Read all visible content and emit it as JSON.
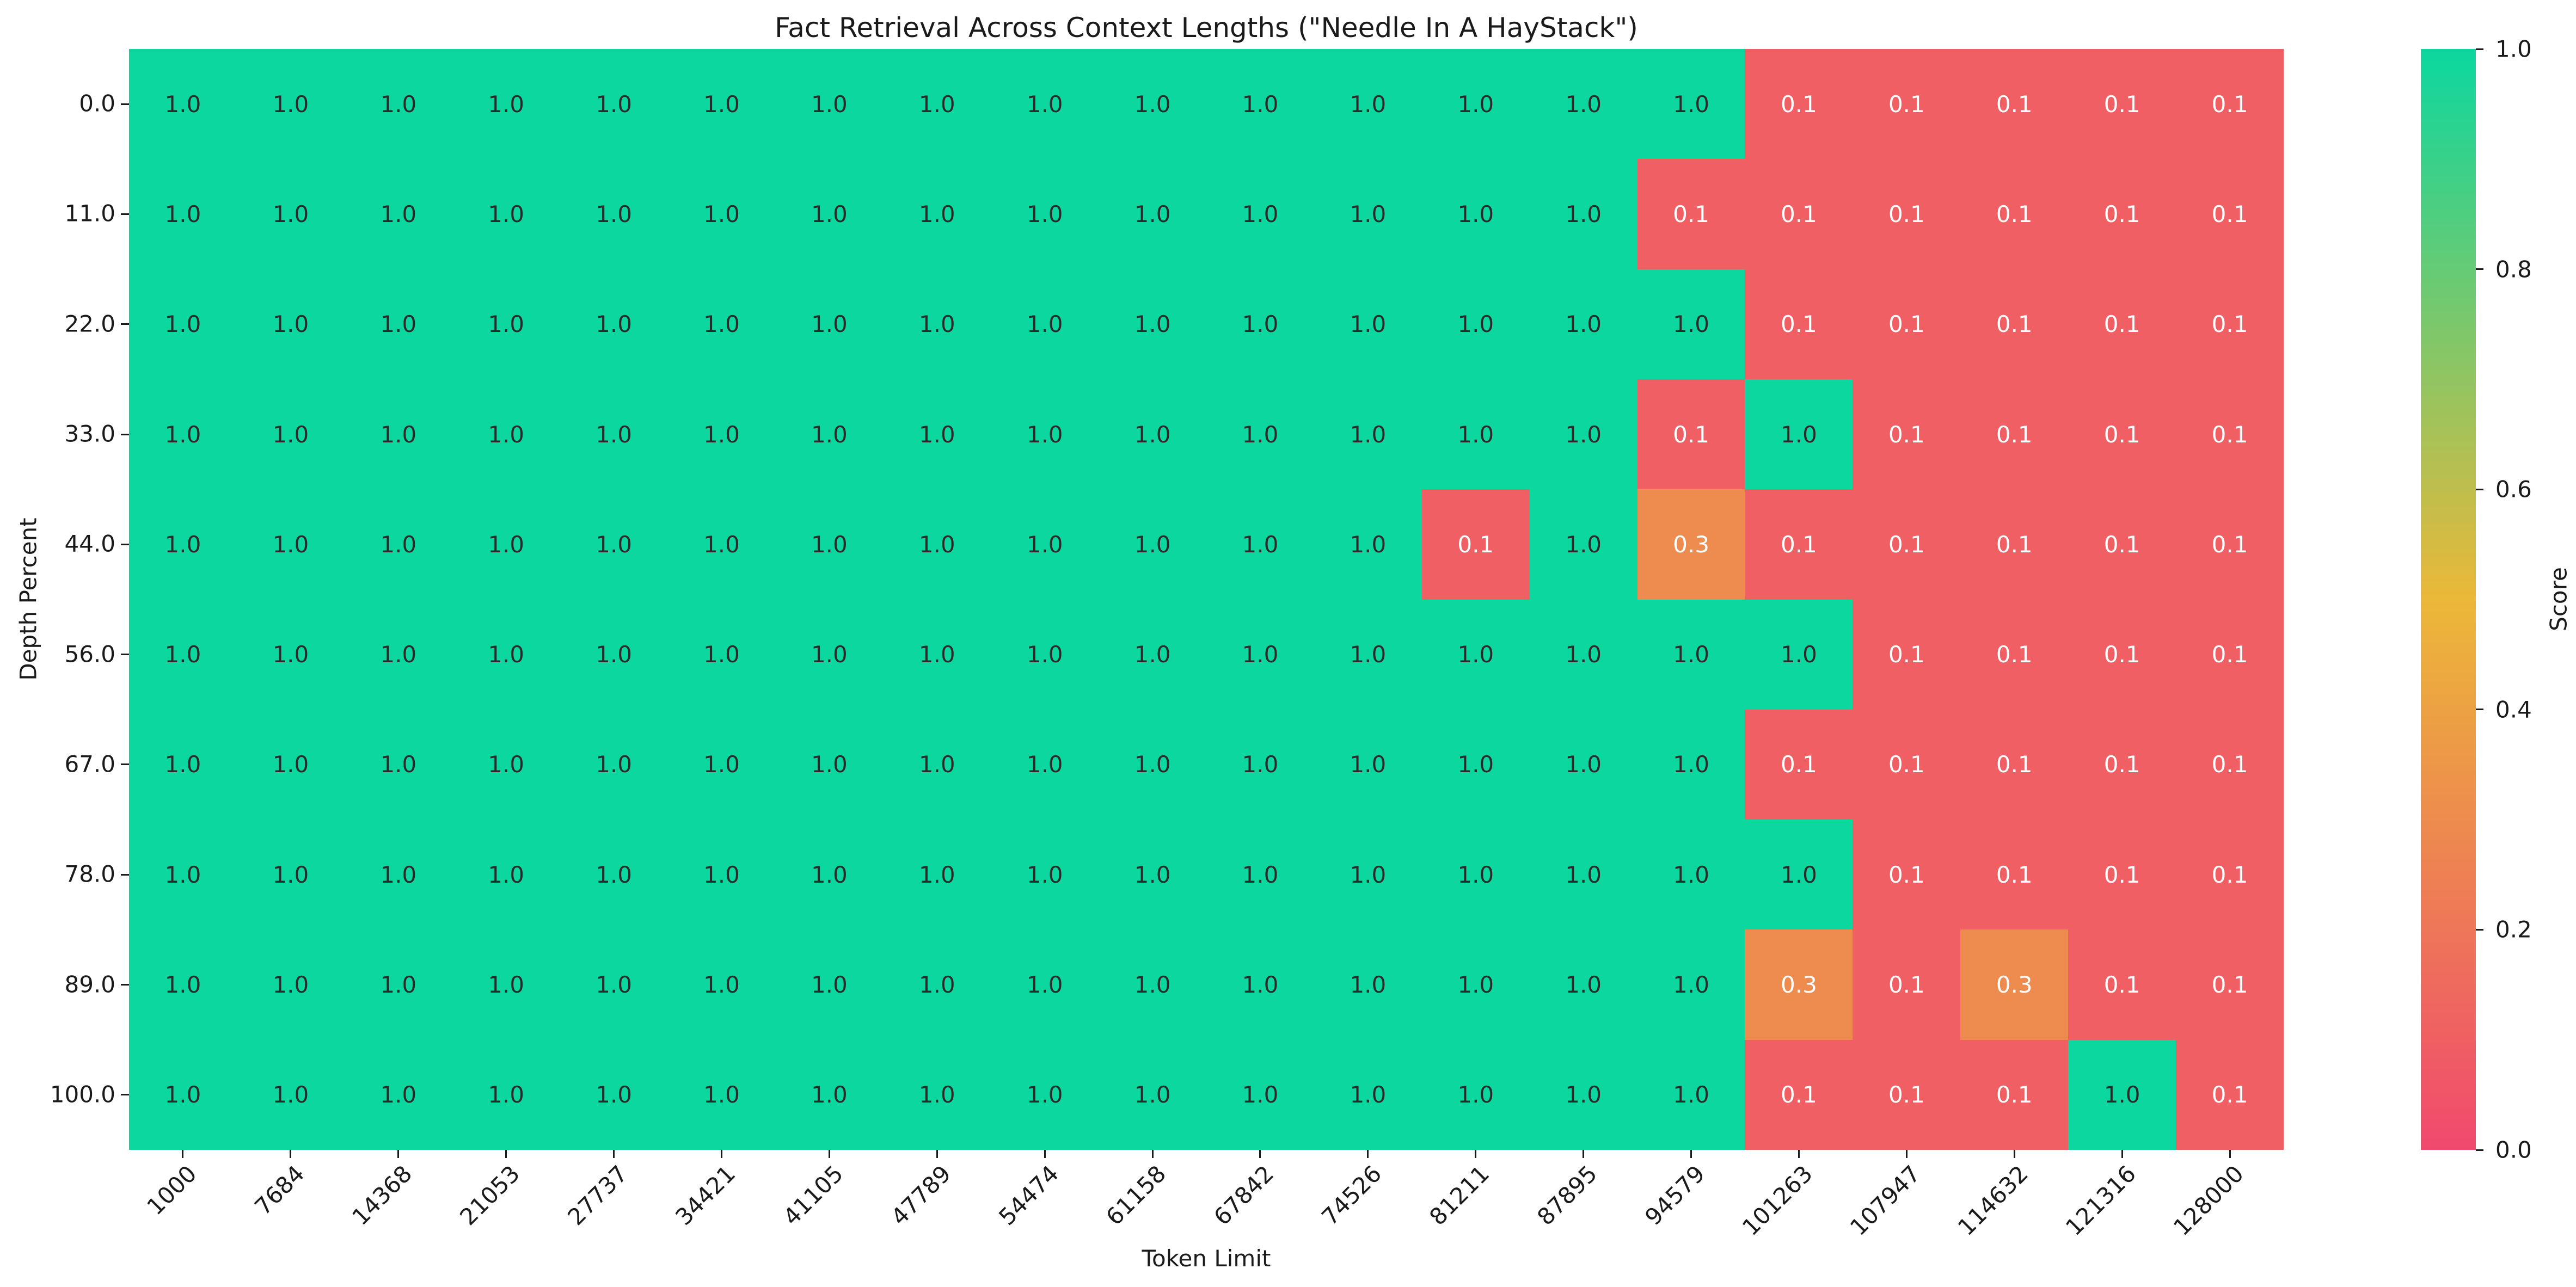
{
  "chart_data": {
    "type": "heatmap",
    "title": "Fact Retrieval Across Context Lengths (\"Needle In A HayStack\")",
    "xlabel": "Token Limit",
    "ylabel": "Depth Percent",
    "x_categories": [
      "1000",
      "7684",
      "14368",
      "21053",
      "27737",
      "34421",
      "41105",
      "47789",
      "54474",
      "61158",
      "67842",
      "74526",
      "81211",
      "87895",
      "94579",
      "101263",
      "107947",
      "114632",
      "121316",
      "128000"
    ],
    "y_categories": [
      "0.0",
      "11.0",
      "22.0",
      "33.0",
      "44.0",
      "56.0",
      "67.0",
      "78.0",
      "89.0",
      "100.0"
    ],
    "values": [
      [
        1.0,
        1.0,
        1.0,
        1.0,
        1.0,
        1.0,
        1.0,
        1.0,
        1.0,
        1.0,
        1.0,
        1.0,
        1.0,
        1.0,
        1.0,
        0.1,
        0.1,
        0.1,
        0.1,
        0.1
      ],
      [
        1.0,
        1.0,
        1.0,
        1.0,
        1.0,
        1.0,
        1.0,
        1.0,
        1.0,
        1.0,
        1.0,
        1.0,
        1.0,
        1.0,
        0.1,
        0.1,
        0.1,
        0.1,
        0.1,
        0.1
      ],
      [
        1.0,
        1.0,
        1.0,
        1.0,
        1.0,
        1.0,
        1.0,
        1.0,
        1.0,
        1.0,
        1.0,
        1.0,
        1.0,
        1.0,
        1.0,
        0.1,
        0.1,
        0.1,
        0.1,
        0.1
      ],
      [
        1.0,
        1.0,
        1.0,
        1.0,
        1.0,
        1.0,
        1.0,
        1.0,
        1.0,
        1.0,
        1.0,
        1.0,
        1.0,
        1.0,
        0.1,
        1.0,
        0.1,
        0.1,
        0.1,
        0.1
      ],
      [
        1.0,
        1.0,
        1.0,
        1.0,
        1.0,
        1.0,
        1.0,
        1.0,
        1.0,
        1.0,
        1.0,
        1.0,
        0.1,
        1.0,
        0.3,
        0.1,
        0.1,
        0.1,
        0.1,
        0.1
      ],
      [
        1.0,
        1.0,
        1.0,
        1.0,
        1.0,
        1.0,
        1.0,
        1.0,
        1.0,
        1.0,
        1.0,
        1.0,
        1.0,
        1.0,
        1.0,
        1.0,
        0.1,
        0.1,
        0.1,
        0.1
      ],
      [
        1.0,
        1.0,
        1.0,
        1.0,
        1.0,
        1.0,
        1.0,
        1.0,
        1.0,
        1.0,
        1.0,
        1.0,
        1.0,
        1.0,
        1.0,
        0.1,
        0.1,
        0.1,
        0.1,
        0.1
      ],
      [
        1.0,
        1.0,
        1.0,
        1.0,
        1.0,
        1.0,
        1.0,
        1.0,
        1.0,
        1.0,
        1.0,
        1.0,
        1.0,
        1.0,
        1.0,
        1.0,
        0.1,
        0.1,
        0.1,
        0.1
      ],
      [
        1.0,
        1.0,
        1.0,
        1.0,
        1.0,
        1.0,
        1.0,
        1.0,
        1.0,
        1.0,
        1.0,
        1.0,
        1.0,
        1.0,
        1.0,
        0.3,
        0.1,
        0.3,
        0.1,
        0.1
      ],
      [
        1.0,
        1.0,
        1.0,
        1.0,
        1.0,
        1.0,
        1.0,
        1.0,
        1.0,
        1.0,
        1.0,
        1.0,
        1.0,
        1.0,
        1.0,
        0.1,
        0.1,
        0.1,
        1.0,
        0.1
      ]
    ],
    "colorbar": {
      "label": "Score",
      "ticks": [
        "1.0",
        "0.8",
        "0.6",
        "0.4",
        "0.2",
        "0.0"
      ],
      "min": 0.0,
      "max": 1.0
    },
    "colors": {
      "cmap_stops": [
        "#f0496e",
        "#ebb839",
        "#0cd79f"
      ],
      "annot_dark": "#2a2a2a",
      "annot_light": "#ffffff",
      "axis_text": "#1a1a1a"
    },
    "layout": {
      "grid": "off",
      "legend": "colorbar-right"
    }
  }
}
